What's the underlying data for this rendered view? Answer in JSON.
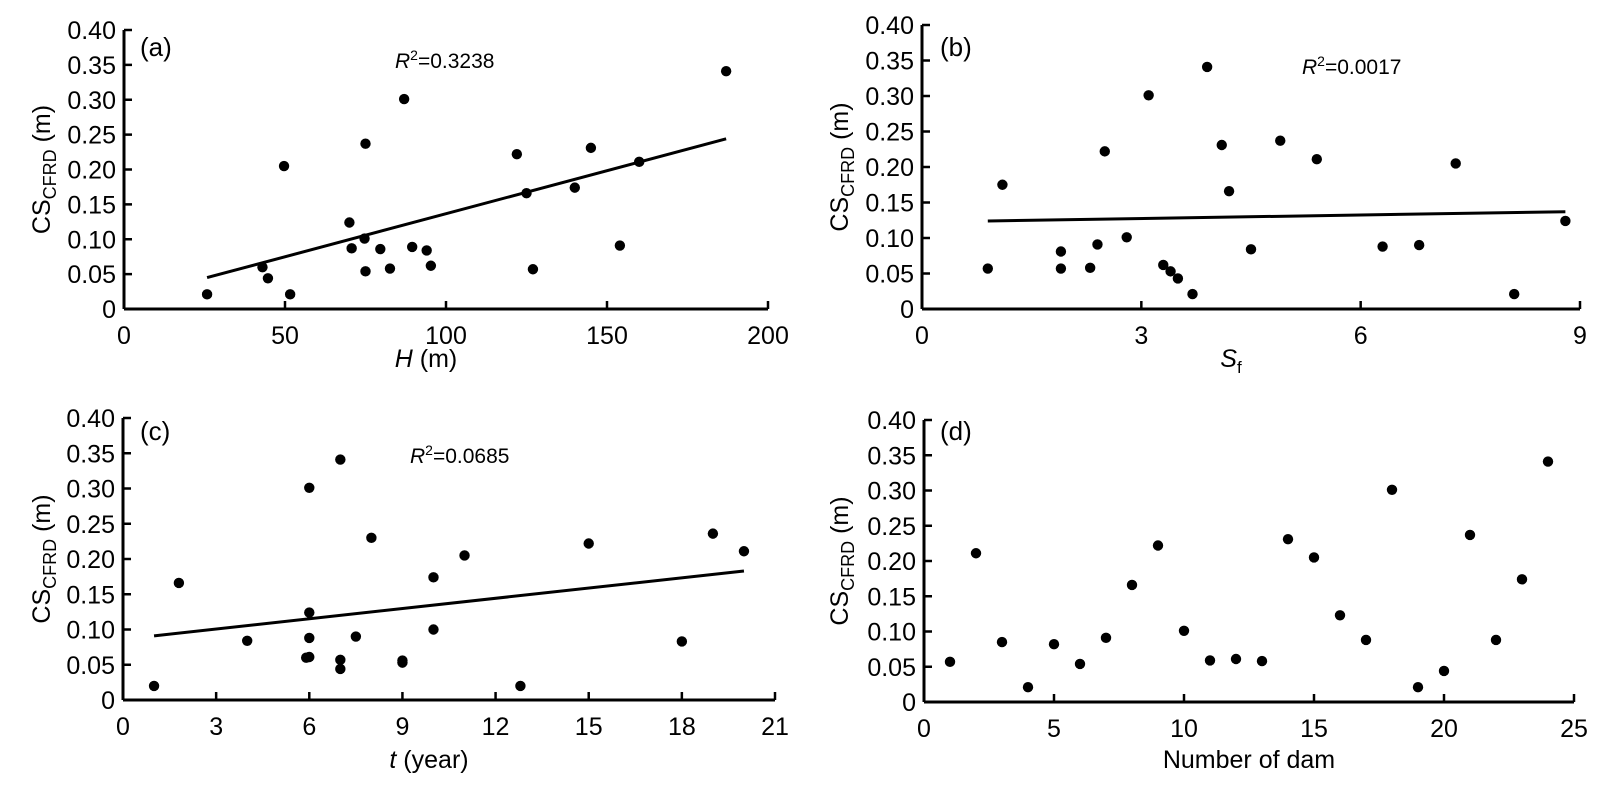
{
  "figure": {
    "background": "#ffffff",
    "ink": "#000000"
  },
  "chart_data": [
    {
      "id": "a",
      "type": "scatter",
      "panel_label": "(a)",
      "title": "",
      "xlabel": {
        "italic": "H",
        "rest": " (m)"
      },
      "ylabel": {
        "main": "CS",
        "sub": "CFRD",
        "rest": " (m)"
      },
      "xlim": [
        0,
        200
      ],
      "ylim": [
        0,
        0.4
      ],
      "xticks": [
        0,
        50,
        100,
        150,
        200
      ],
      "xtick_labels": [
        "0",
        "50",
        "100",
        "150",
        "200"
      ],
      "yticks": [
        0,
        0.05,
        0.1,
        0.15,
        0.2,
        0.25,
        0.3,
        0.35,
        0.4
      ],
      "ytick_labels": [
        "0",
        "0.05",
        "0.10",
        "0.15",
        "0.20",
        "0.25",
        "0.30",
        "0.35",
        "0.40"
      ],
      "grid": false,
      "annotation": {
        "r2_label": "R",
        "r2_sup": "2",
        "r2_value": "=0.3238",
        "position": "top-center"
      },
      "fit_line": {
        "x": [
          25.8,
          187
        ],
        "y": [
          0.045,
          0.244
        ]
      },
      "points": [
        {
          "x": 25.8,
          "y": 0.021
        },
        {
          "x": 43,
          "y": 0.06
        },
        {
          "x": 44.7,
          "y": 0.044
        },
        {
          "x": 49.7,
          "y": 0.205
        },
        {
          "x": 51.6,
          "y": 0.021
        },
        {
          "x": 70,
          "y": 0.124
        },
        {
          "x": 70.7,
          "y": 0.087
        },
        {
          "x": 74.7,
          "y": 0.101
        },
        {
          "x": 75,
          "y": 0.237
        },
        {
          "x": 75,
          "y": 0.054
        },
        {
          "x": 79.6,
          "y": 0.086
        },
        {
          "x": 82.6,
          "y": 0.058
        },
        {
          "x": 87,
          "y": 0.301
        },
        {
          "x": 89.5,
          "y": 0.089
        },
        {
          "x": 94,
          "y": 0.084
        },
        {
          "x": 95.3,
          "y": 0.062
        },
        {
          "x": 122,
          "y": 0.222
        },
        {
          "x": 125,
          "y": 0.166
        },
        {
          "x": 127,
          "y": 0.057
        },
        {
          "x": 140,
          "y": 0.174
        },
        {
          "x": 145,
          "y": 0.231
        },
        {
          "x": 154,
          "y": 0.091
        },
        {
          "x": 160,
          "y": 0.211
        },
        {
          "x": 187,
          "y": 0.341
        }
      ]
    },
    {
      "id": "b",
      "type": "scatter",
      "panel_label": "(b)",
      "title": "",
      "xlabel": {
        "italic": "S",
        "sub": "f",
        "rest": ""
      },
      "ylabel": {
        "main": "CS",
        "sub": "CFRD",
        "rest": " (m)"
      },
      "xlim": [
        0,
        9
      ],
      "ylim": [
        0,
        0.4
      ],
      "xticks": [
        0,
        3,
        6,
        9
      ],
      "xtick_labels": [
        "0",
        "3",
        "6",
        "9"
      ],
      "yticks": [
        0,
        0.05,
        0.1,
        0.15,
        0.2,
        0.25,
        0.3,
        0.35,
        0.4
      ],
      "ytick_labels": [
        "0",
        "0.05",
        "0.10",
        "0.15",
        "0.20",
        "0.25",
        "0.30",
        "0.35",
        "0.40"
      ],
      "grid": false,
      "annotation": {
        "r2_label": "R",
        "r2_sup": "2",
        "r2_value": "=0.0017",
        "position": "top-right"
      },
      "fit_line": {
        "x": [
          0.9,
          8.8
        ],
        "y": [
          0.124,
          0.137
        ]
      },
      "points": [
        {
          "x": 0.9,
          "y": 0.057
        },
        {
          "x": 1.1,
          "y": 0.175
        },
        {
          "x": 1.9,
          "y": 0.081
        },
        {
          "x": 1.9,
          "y": 0.057
        },
        {
          "x": 2.3,
          "y": 0.058
        },
        {
          "x": 2.4,
          "y": 0.091
        },
        {
          "x": 2.5,
          "y": 0.222
        },
        {
          "x": 2.8,
          "y": 0.101
        },
        {
          "x": 3.1,
          "y": 0.301
        },
        {
          "x": 3.3,
          "y": 0.062
        },
        {
          "x": 3.4,
          "y": 0.053
        },
        {
          "x": 3.5,
          "y": 0.043
        },
        {
          "x": 3.7,
          "y": 0.021
        },
        {
          "x": 3.9,
          "y": 0.341
        },
        {
          "x": 4.1,
          "y": 0.231
        },
        {
          "x": 4.2,
          "y": 0.166
        },
        {
          "x": 4.5,
          "y": 0.084
        },
        {
          "x": 4.9,
          "y": 0.237
        },
        {
          "x": 5.4,
          "y": 0.211
        },
        {
          "x": 6.3,
          "y": 0.088
        },
        {
          "x": 6.8,
          "y": 0.09
        },
        {
          "x": 7.3,
          "y": 0.205
        },
        {
          "x": 8.1,
          "y": 0.021
        },
        {
          "x": 8.8,
          "y": 0.124
        }
      ]
    },
    {
      "id": "c",
      "type": "scatter",
      "panel_label": "(c)",
      "title": "",
      "xlabel": {
        "italic": "t",
        "rest": " (year)"
      },
      "ylabel": {
        "main": "CS",
        "sub": "CFRD",
        "rest": " (m)"
      },
      "xlim": [
        0,
        21
      ],
      "ylim": [
        0,
        0.4
      ],
      "xticks": [
        0,
        3,
        6,
        9,
        12,
        15,
        18,
        21
      ],
      "xtick_labels": [
        "0",
        "3",
        "6",
        "9",
        "12",
        "15",
        "18",
        "21"
      ],
      "yticks": [
        0,
        0.05,
        0.1,
        0.15,
        0.2,
        0.25,
        0.3,
        0.35,
        0.4
      ],
      "ytick_labels": [
        "0",
        "0.05",
        "0.10",
        "0.15",
        "0.20",
        "0.25",
        "0.30",
        "0.35",
        "0.40"
      ],
      "grid": false,
      "annotation": {
        "r2_label": "R",
        "r2_sup": "2",
        "r2_value": "=0.0685",
        "position": "top-center"
      },
      "fit_line": {
        "x": [
          1,
          20
        ],
        "y": [
          0.091,
          0.183
        ]
      },
      "points": [
        {
          "x": 1,
          "y": 0.02
        },
        {
          "x": 1.8,
          "y": 0.166
        },
        {
          "x": 4,
          "y": 0.084
        },
        {
          "x": 5.9,
          "y": 0.06
        },
        {
          "x": 6,
          "y": 0.301
        },
        {
          "x": 6,
          "y": 0.124
        },
        {
          "x": 6,
          "y": 0.088
        },
        {
          "x": 6,
          "y": 0.061
        },
        {
          "x": 7,
          "y": 0.341
        },
        {
          "x": 7,
          "y": 0.057
        },
        {
          "x": 7,
          "y": 0.044
        },
        {
          "x": 7.5,
          "y": 0.09
        },
        {
          "x": 8,
          "y": 0.23
        },
        {
          "x": 9,
          "y": 0.056
        },
        {
          "x": 9,
          "y": 0.053
        },
        {
          "x": 10,
          "y": 0.174
        },
        {
          "x": 10,
          "y": 0.1
        },
        {
          "x": 11,
          "y": 0.205
        },
        {
          "x": 12.8,
          "y": 0.02
        },
        {
          "x": 15,
          "y": 0.222
        },
        {
          "x": 18,
          "y": 0.083
        },
        {
          "x": 19,
          "y": 0.236
        },
        {
          "x": 20,
          "y": 0.211
        }
      ]
    },
    {
      "id": "d",
      "type": "scatter",
      "panel_label": "(d)",
      "title": "",
      "xlabel": {
        "italic": "",
        "rest": "Number of dam"
      },
      "ylabel": {
        "main": "CS",
        "sub": "CFRD",
        "rest": " (m)"
      },
      "xlim": [
        0,
        25
      ],
      "ylim": [
        0,
        0.4
      ],
      "xticks": [
        0,
        5,
        10,
        15,
        20,
        25
      ],
      "xtick_labels": [
        "0",
        "5",
        "10",
        "15",
        "20",
        "25"
      ],
      "yticks": [
        0,
        0.05,
        0.1,
        0.15,
        0.2,
        0.25,
        0.3,
        0.35,
        0.4
      ],
      "ytick_labels": [
        "0",
        "0.05",
        "0.10",
        "0.15",
        "0.20",
        "0.25",
        "0.30",
        "0.35",
        "0.40"
      ],
      "grid": false,
      "annotation": null,
      "fit_line": null,
      "points": [
        {
          "x": 1,
          "y": 0.057
        },
        {
          "x": 2,
          "y": 0.211
        },
        {
          "x": 3,
          "y": 0.085
        },
        {
          "x": 4,
          "y": 0.021
        },
        {
          "x": 5,
          "y": 0.082
        },
        {
          "x": 6,
          "y": 0.054
        },
        {
          "x": 7,
          "y": 0.091
        },
        {
          "x": 8,
          "y": 0.166
        },
        {
          "x": 9,
          "y": 0.222
        },
        {
          "x": 10,
          "y": 0.101
        },
        {
          "x": 11,
          "y": 0.059
        },
        {
          "x": 12,
          "y": 0.061
        },
        {
          "x": 13,
          "y": 0.058
        },
        {
          "x": 14,
          "y": 0.231
        },
        {
          "x": 15,
          "y": 0.205
        },
        {
          "x": 16,
          "y": 0.123
        },
        {
          "x": 17,
          "y": 0.088
        },
        {
          "x": 18,
          "y": 0.301
        },
        {
          "x": 19,
          "y": 0.021
        },
        {
          "x": 20,
          "y": 0.044
        },
        {
          "x": 21,
          "y": 0.237
        },
        {
          "x": 22,
          "y": 0.088
        },
        {
          "x": 23,
          "y": 0.174
        },
        {
          "x": 24,
          "y": 0.341
        }
      ]
    }
  ]
}
